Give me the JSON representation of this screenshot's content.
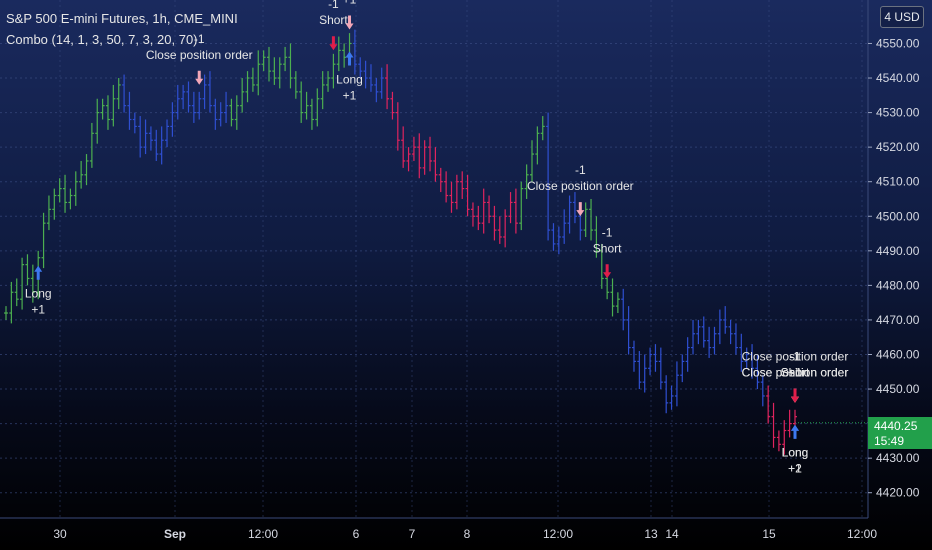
{
  "header": {
    "symbol_line": "S&P 500 E-mini Futures, 1h, CME_MINI",
    "indicator_line": "Combo (14, 1, 3, 50, 7, 3, 20, 70)"
  },
  "currency_button": "4 USD",
  "last_price": {
    "value": "4440.25",
    "countdown": "15:49"
  },
  "colors": {
    "up_bar": "#4caf50",
    "neutral_bar": "#2f4fd1",
    "down_bar": "#e0245e",
    "last_price_tag": "#22a04b",
    "marker_long": "#3d78f0",
    "marker_short": "#e01e4a",
    "marker_close": "#f3a7b8"
  },
  "chart_data": {
    "type": "ohlc",
    "title": "S&P 500 E-mini Futures, 1h, CME_MINI",
    "ylim": [
      4415,
      4562
    ],
    "y_ticks": [
      4420,
      4430,
      4440,
      4450,
      4460,
      4470,
      4480,
      4490,
      4500,
      4510,
      4520,
      4530,
      4540,
      4550
    ],
    "x_ticks": [
      "30",
      "Sep",
      "12:00",
      "6",
      "7",
      "8",
      "12:00",
      "13",
      "14",
      "15",
      "12:00"
    ],
    "grid": true,
    "series": [
      {
        "color": "up",
        "bars": [
          4472,
          4478,
          4476,
          4486,
          4482,
          4478,
          4488,
          4498,
          4502,
          4506,
          4508,
          4504,
          4506,
          4510,
          4512,
          4516,
          4524,
          4530,
          4532,
          4528,
          4534,
          4538
        ]
      },
      {
        "color": "neutral",
        "bars": [
          4532,
          4528,
          4526,
          4520,
          4524,
          4522,
          4518,
          4522,
          4526,
          4530,
          4534,
          4536,
          4532,
          4530,
          4534,
          4538,
          4532,
          4528,
          4530,
          4532
        ]
      },
      {
        "color": "up",
        "bars": [
          4528,
          4532,
          4536,
          4540,
          4538,
          4544,
          4546,
          4542,
          4540,
          4544,
          4546,
          4540,
          4536,
          4530,
          4532,
          4528,
          4534,
          4538,
          4540,
          4544,
          4548,
          4546,
          4550
        ]
      },
      {
        "color": "neutral",
        "bars": [
          4544,
          4542,
          4540,
          4538,
          4536,
          4540
        ]
      },
      {
        "color": "down",
        "bars": [
          4534,
          4530,
          4522,
          4516,
          4518,
          4520,
          4514,
          4520,
          4516,
          4512,
          4510,
          4506,
          4504,
          4510,
          4508,
          4502,
          4500,
          4498,
          4504,
          4500,
          4496,
          4494,
          4500,
          4504,
          4498
        ]
      },
      {
        "color": "up",
        "bars": [
          4508,
          4512,
          4518,
          4524,
          4526
        ]
      },
      {
        "color": "neutral",
        "bars": [
          4496,
          4492,
          4494,
          4498,
          4504,
          4500,
          4496
        ]
      },
      {
        "color": "up",
        "bars": [
          4502,
          4496,
          4490,
          4482,
          4478,
          4474,
          4476
        ]
      },
      {
        "color": "neutral",
        "bars": [
          4470,
          4462,
          4458,
          4452,
          4456,
          4460,
          4458,
          4452,
          4446,
          4448,
          4454,
          4458,
          4462,
          4466,
          4468,
          4464,
          4462,
          4466,
          4470,
          4468,
          4466,
          4462,
          4458,
          4460,
          4456,
          4452,
          4448
        ]
      },
      {
        "color": "down",
        "bars": [
          4442,
          4436,
          4434,
          4438,
          4440,
          4442
        ]
      }
    ]
  },
  "trade_markers": [
    {
      "type": "long",
      "text_top": "Long",
      "text_bottom": "+1",
      "x_index": 6
    },
    {
      "type": "close",
      "text_top": "-1",
      "text_bottom": "Close position order",
      "x_index": 36
    },
    {
      "type": "short",
      "text_top": "-1",
      "text_bottom": "Short",
      "x_index": 61
    },
    {
      "type": "long",
      "text_top": "Long",
      "text_bottom": "+1",
      "x_index": 64
    },
    {
      "type": "close",
      "text_top": "Close position order",
      "text_bottom": "+1",
      "x_index": 64
    },
    {
      "type": "close",
      "text_top": "-1",
      "text_bottom": "Close position order",
      "x_index": 107
    },
    {
      "type": "short",
      "text_top": "-1",
      "text_bottom": "Short",
      "x_index": 112
    },
    {
      "type": "close",
      "text_top": "-1",
      "text_bottom": "Close position order",
      "x_index": 154
    },
    {
      "type": "long",
      "text_top": "Long",
      "text_bottom": "+2",
      "x_index": 150
    },
    {
      "type": "long",
      "text_top": "Long",
      "text_bottom": "+1",
      "x_index": 162
    },
    {
      "type": "close",
      "text_top": "-1",
      "text_bottom": "Close position order",
      "x_index": 169
    },
    {
      "type": "short",
      "text_top": "",
      "text_bottom": "Short",
      "x_index": 175
    },
    {
      "type": "close",
      "text_top": "Close position order",
      "text_bottom": "+1",
      "x_index": 178
    },
    {
      "type": "short",
      "text_top": "-1",
      "text_bottom": "Short",
      "x_index": 202
    }
  ]
}
